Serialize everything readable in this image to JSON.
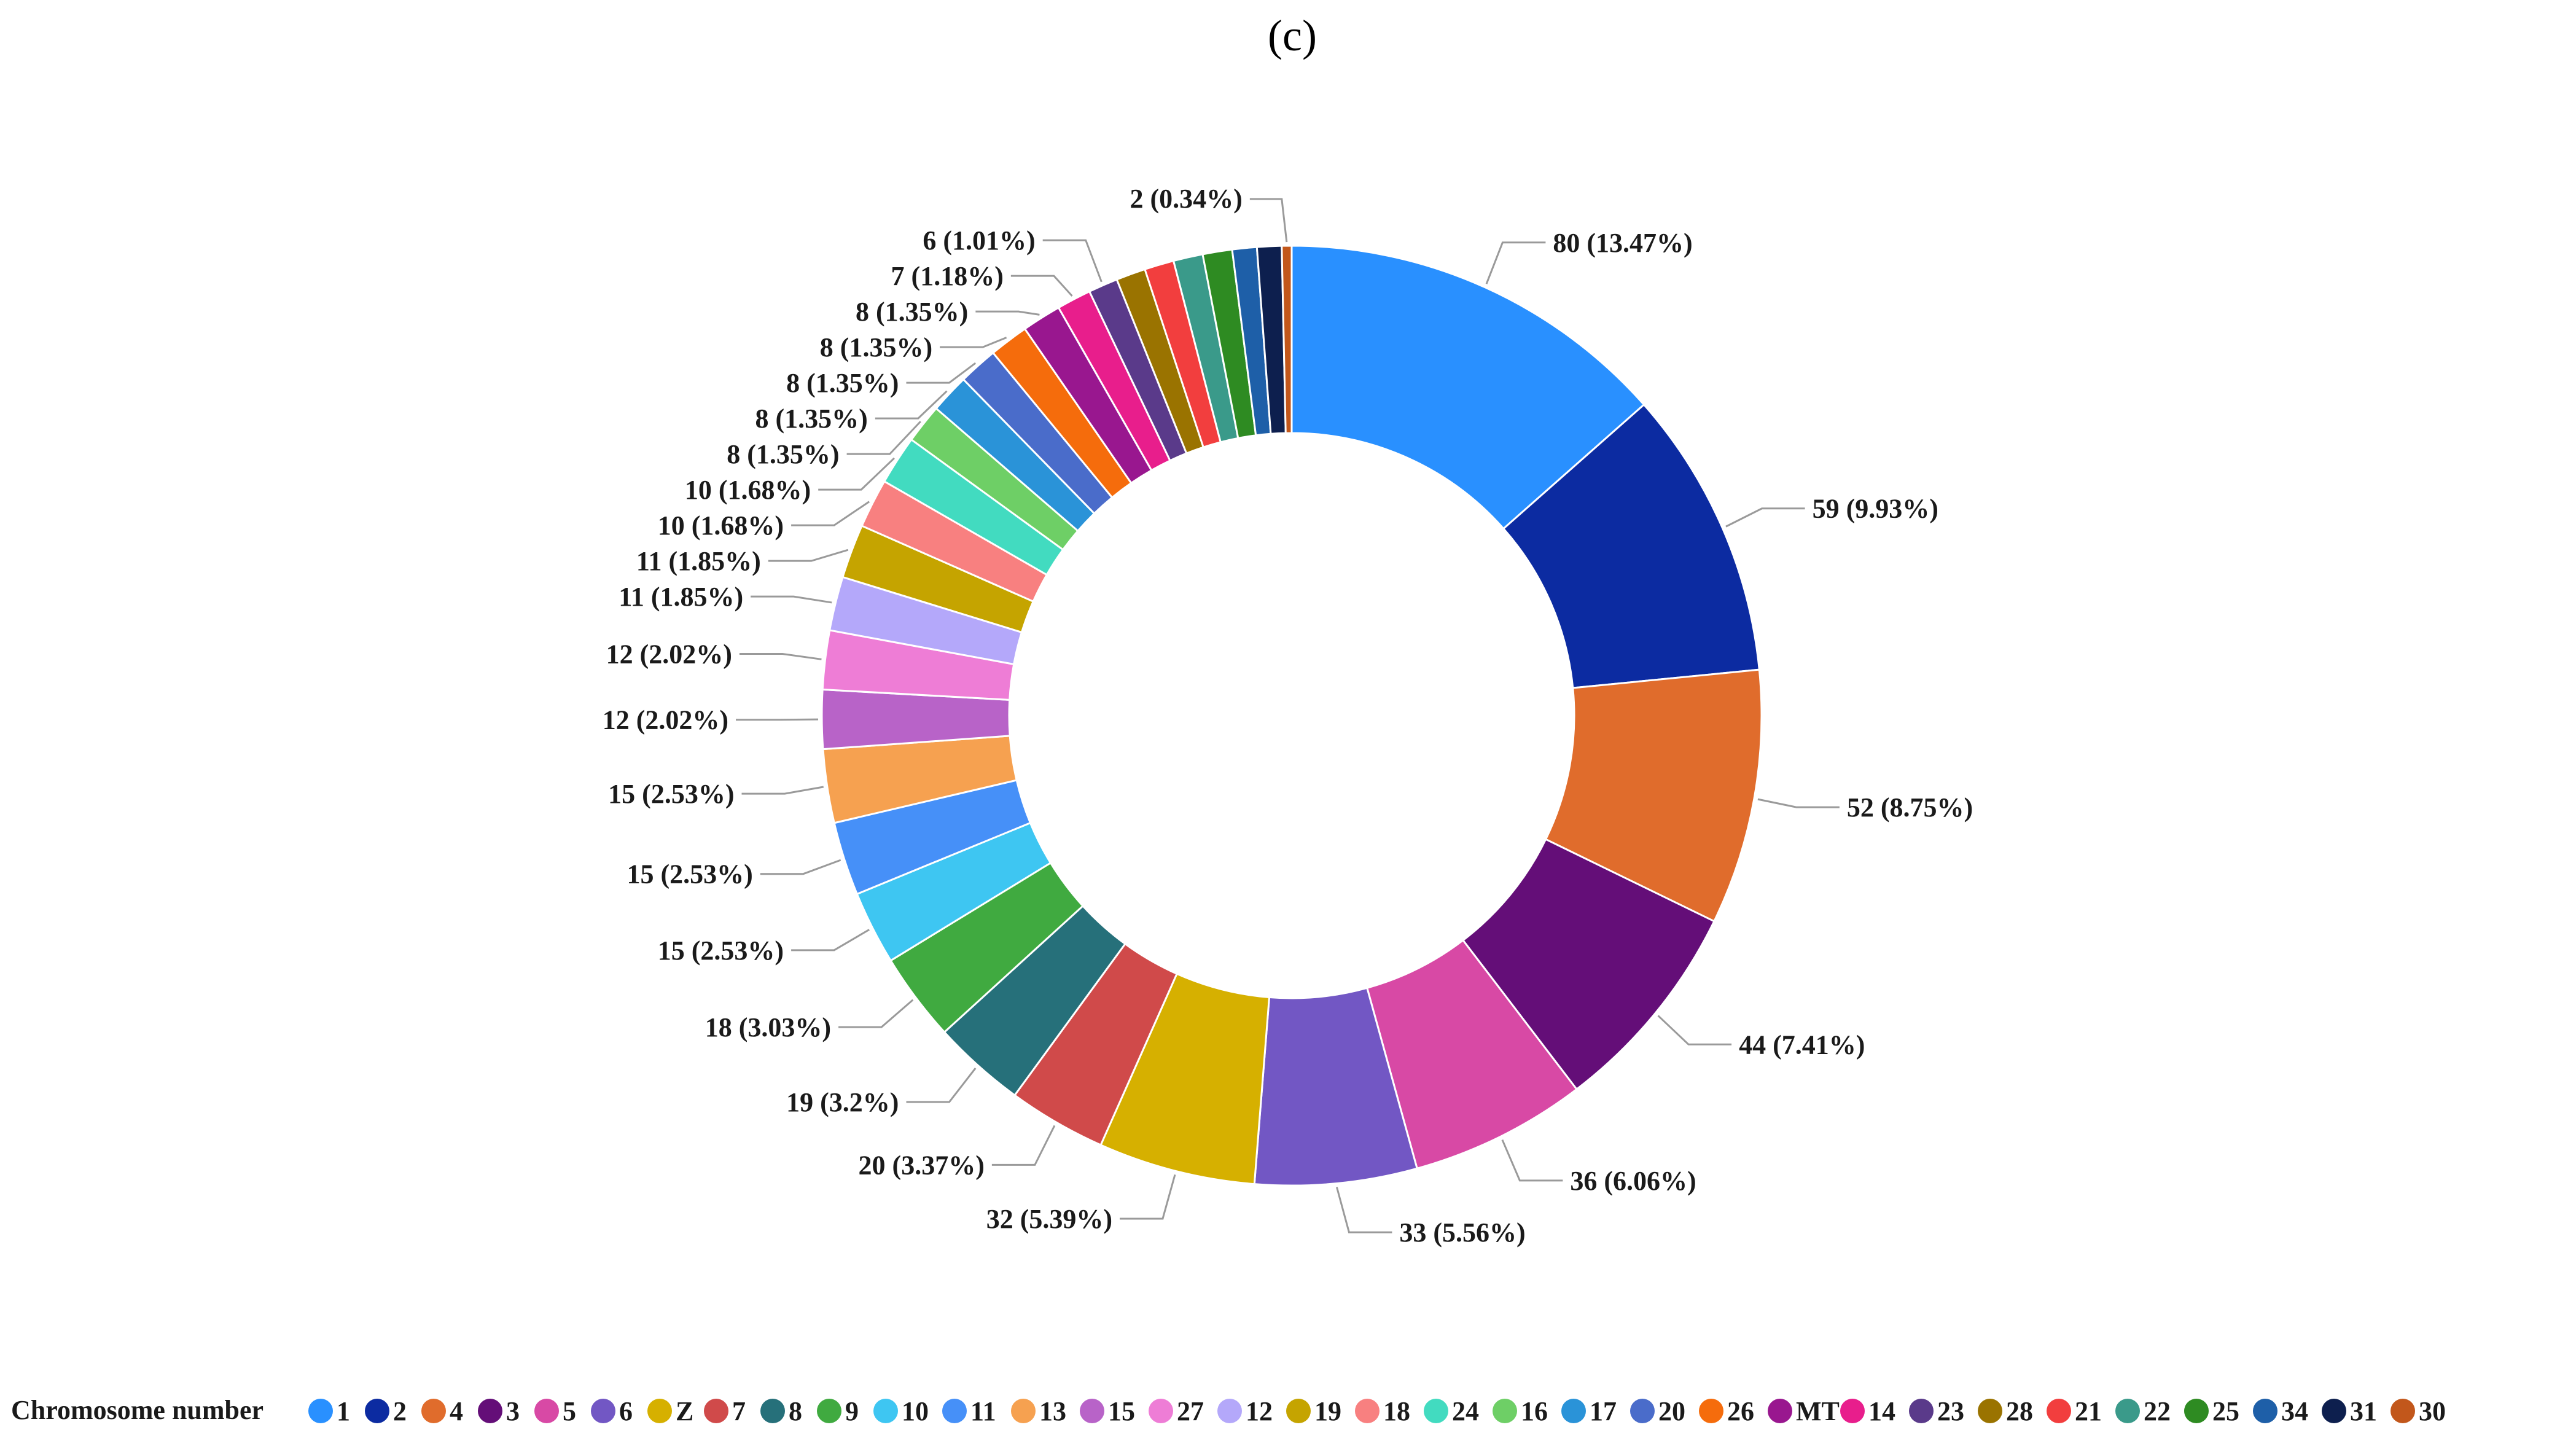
{
  "panel_label": "(c)",
  "chart_data": {
    "type": "pie",
    "donut": true,
    "legend_title": "Chromosome number",
    "legend_position": "bottom",
    "slices": [
      {
        "name": "1",
        "value": 80,
        "label": "80 (13.47%)",
        "color": "#2990FF"
      },
      {
        "name": "2",
        "value": 59,
        "label": "59 (9.93%)",
        "color": "#0C2BA1"
      },
      {
        "name": "4",
        "value": 52,
        "label": "52 (8.75%)",
        "color": "#E06C2C"
      },
      {
        "name": "3",
        "value": 44,
        "label": "44 (7.41%)",
        "color": "#640E78"
      },
      {
        "name": "5",
        "value": 36,
        "label": "36 (6.06%)",
        "color": "#D849A5"
      },
      {
        "name": "6",
        "value": 33,
        "label": "33 (5.56%)",
        "color": "#7257C4"
      },
      {
        "name": "Z",
        "value": 32,
        "label": "32 (5.39%)",
        "color": "#D6B000"
      },
      {
        "name": "7",
        "value": 20,
        "label": "20 (3.37%)",
        "color": "#D04A4A"
      },
      {
        "name": "8",
        "value": 19,
        "label": "19 (3.2%)",
        "color": "#26707A"
      },
      {
        "name": "9",
        "value": 18,
        "label": "18 (3.03%)",
        "color": "#40AA40"
      },
      {
        "name": "10",
        "value": 15,
        "label": "15 (2.53%)",
        "color": "#3EC6F2"
      },
      {
        "name": "11",
        "value": 15,
        "label": "15 (2.53%)",
        "color": "#4690F8"
      },
      {
        "name": "13",
        "value": 15,
        "label": "15 (2.53%)",
        "color": "#F6A150"
      },
      {
        "name": "15",
        "value": 12,
        "label": "12 (2.02%)",
        "color": "#B863C8"
      },
      {
        "name": "27",
        "value": 12,
        "label": "12 (2.02%)",
        "color": "#EE7DD6"
      },
      {
        "name": "12",
        "value": 11,
        "label": "11 (1.85%)",
        "color": "#B4A8FA"
      },
      {
        "name": "19",
        "value": 11,
        "label": "11 (1.85%)",
        "color": "#C5A400"
      },
      {
        "name": "18",
        "value": 10,
        "label": "10 (1.68%)",
        "color": "#F88080"
      },
      {
        "name": "24",
        "value": 10,
        "label": "10 (1.68%)",
        "color": "#42DBC0"
      },
      {
        "name": "16",
        "value": 8,
        "label": "8 (1.35%)",
        "color": "#6ECF66"
      },
      {
        "name": "17",
        "value": 8,
        "label": "8 (1.35%)",
        "color": "#2A93D8"
      },
      {
        "name": "20",
        "value": 8,
        "label": "8 (1.35%)",
        "color": "#4A6CCA"
      },
      {
        "name": "26",
        "value": 8,
        "label": "8 (1.35%)",
        "color": "#F56C0C"
      },
      {
        "name": "MT",
        "value": 8,
        "label": "8 (1.35%)",
        "color": "#99178F"
      },
      {
        "name": "14",
        "value": 7,
        "label": "7 (1.18%)",
        "color": "#E81E8C"
      },
      {
        "name": "23",
        "value": 6,
        "label": "6 (1.01%)",
        "color": "#5A3A8A"
      },
      {
        "name": "28",
        "value": 6,
        "label": "",
        "color": "#9A7300"
      },
      {
        "name": "21",
        "value": 6,
        "label": "",
        "color": "#F23E3E"
      },
      {
        "name": "22",
        "value": 6,
        "label": "",
        "color": "#3A9A8A"
      },
      {
        "name": "25",
        "value": 6,
        "label": "",
        "color": "#2E8B22"
      },
      {
        "name": "34",
        "value": 5,
        "label": "",
        "color": "#1E5FA8"
      },
      {
        "name": "31",
        "value": 5,
        "label": "",
        "color": "#0D1F4E"
      },
      {
        "name": "30",
        "value": 2,
        "label": "2 (0.34%)",
        "color": "#C2571B"
      }
    ]
  }
}
